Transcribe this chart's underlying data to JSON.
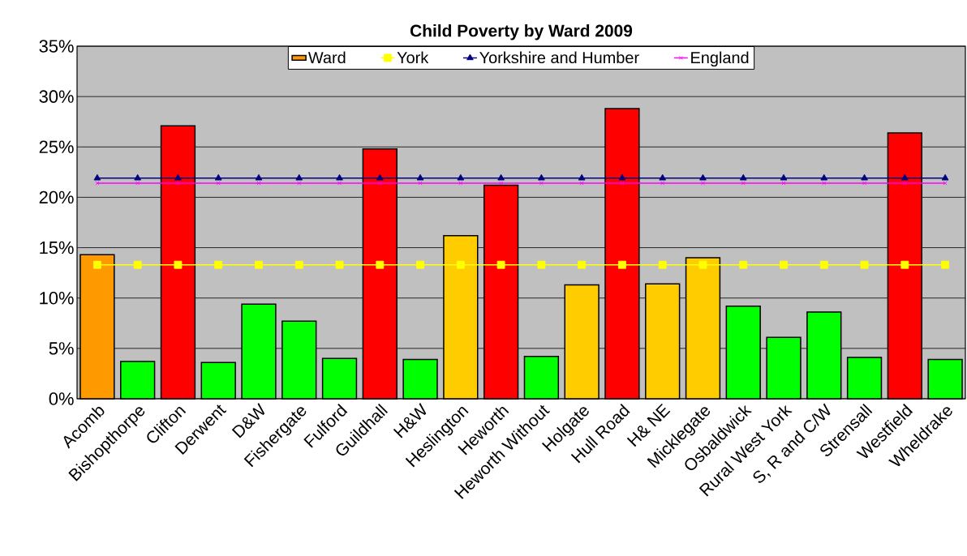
{
  "chart_data": {
    "type": "bar",
    "title": "Child Poverty by Ward 2009",
    "categories": [
      "Acomb",
      "Bishopthorpe",
      "Clifton",
      "Derwent",
      "D&W",
      "Fishergate",
      "Fulford",
      "Guildhall",
      "H&W",
      "Heslington",
      "Heworth",
      "Heworth Without",
      "Holgate",
      "Hull Road",
      "H& NE",
      "Micklegate",
      "Osbaldwick",
      "Rural West York",
      "S, R and C/W",
      "Strensall",
      "Westfield",
      "Wheldrake"
    ],
    "series": [
      {
        "name": "Ward",
        "colors": [
          "#ff9900",
          "#00ff00",
          "#ff0000",
          "#00ff00",
          "#00ff00",
          "#00ff00",
          "#00ff00",
          "#ff0000",
          "#00ff00",
          "#ffcc00",
          "#ff0000",
          "#00ff00",
          "#ffcc00",
          "#ff0000",
          "#ffcc00",
          "#ffcc00",
          "#00ff00",
          "#00ff00",
          "#00ff00",
          "#00ff00",
          "#ff0000",
          "#00ff00"
        ],
        "values": [
          14.3,
          3.7,
          27.1,
          3.6,
          9.4,
          7.7,
          4.0,
          24.8,
          3.9,
          16.2,
          21.2,
          4.2,
          11.3,
          28.8,
          11.4,
          14.0,
          9.2,
          6.1,
          8.6,
          4.1,
          26.4,
          3.9
        ]
      },
      {
        "name": "York",
        "type": "line",
        "color": "#ffff00",
        "marker": "square",
        "values": [
          13.3,
          13.3,
          13.3,
          13.3,
          13.3,
          13.3,
          13.3,
          13.3,
          13.3,
          13.3,
          13.3,
          13.3,
          13.3,
          13.3,
          13.3,
          13.3,
          13.3,
          13.3,
          13.3,
          13.3,
          13.3,
          13.3
        ]
      },
      {
        "name": "Yorkshire and Humber",
        "type": "line",
        "color": "#000080",
        "marker": "triangle",
        "values": [
          21.9,
          21.9,
          21.9,
          21.9,
          21.9,
          21.9,
          21.9,
          21.9,
          21.9,
          21.9,
          21.9,
          21.9,
          21.9,
          21.9,
          21.9,
          21.9,
          21.9,
          21.9,
          21.9,
          21.9,
          21.9,
          21.9
        ]
      },
      {
        "name": "England",
        "type": "line",
        "color": "#ff00ff",
        "marker": "cross",
        "values": [
          21.4,
          21.4,
          21.4,
          21.4,
          21.4,
          21.4,
          21.4,
          21.4,
          21.4,
          21.4,
          21.4,
          21.4,
          21.4,
          21.4,
          21.4,
          21.4,
          21.4,
          21.4,
          21.4,
          21.4,
          21.4,
          21.4
        ]
      }
    ],
    "ylim": [
      0,
      35
    ],
    "yticks": [
      {
        "value": 0,
        "label": "0%"
      },
      {
        "value": 5,
        "label": "5%"
      },
      {
        "value": 10,
        "label": "10%"
      },
      {
        "value": 15,
        "label": "15%"
      },
      {
        "value": 20,
        "label": "20%"
      },
      {
        "value": 25,
        "label": "25%"
      },
      {
        "value": 30,
        "label": "30%"
      },
      {
        "value": 35,
        "label": "35%"
      }
    ],
    "grid": "y",
    "legend": "top"
  }
}
